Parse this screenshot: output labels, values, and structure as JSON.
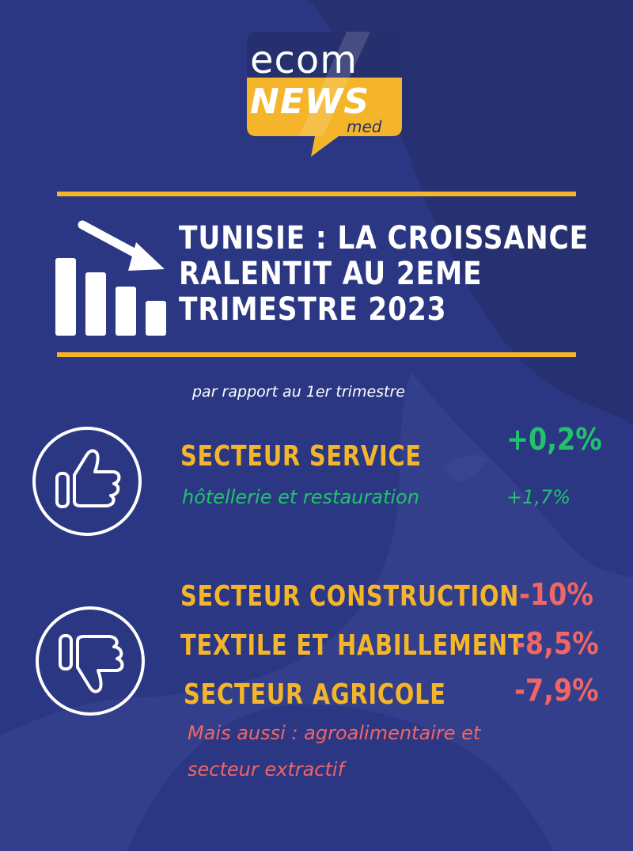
{
  "logo": {
    "line1": "ecom",
    "line2": "NEWS",
    "line3": "med"
  },
  "headline": {
    "line1": "TUNISIE : LA CROISSANCE",
    "line2": "RALENTIT AU 2EME",
    "line3": "TRIMESTRE 2023"
  },
  "subtitle": "par rapport au 1er trimestre",
  "gains": {
    "icon": "thumbs-up-icon",
    "sector": "SECTEUR SERVICE",
    "sector_value": "+0,2%",
    "subsector": "hôtellerie et restauration",
    "subsector_value": "+1,7%"
  },
  "losses": {
    "icon": "thumbs-down-icon",
    "items": [
      {
        "label": "SECTEUR CONSTRUCTION",
        "value": "-10%"
      },
      {
        "label": "TEXTILE ET HABILLEMENT",
        "value": "-8,5%"
      },
      {
        "label": "SECTEUR AGRICOLE",
        "value": "-7,9%"
      }
    ],
    "note_line1": "Mais aussi : agroalimentaire et",
    "note_line2": "secteur extractif"
  },
  "colors": {
    "background": "#2b3783",
    "accent_gold": "#f5b52a",
    "positive": "#20c36b",
    "negative": "#f06565"
  }
}
